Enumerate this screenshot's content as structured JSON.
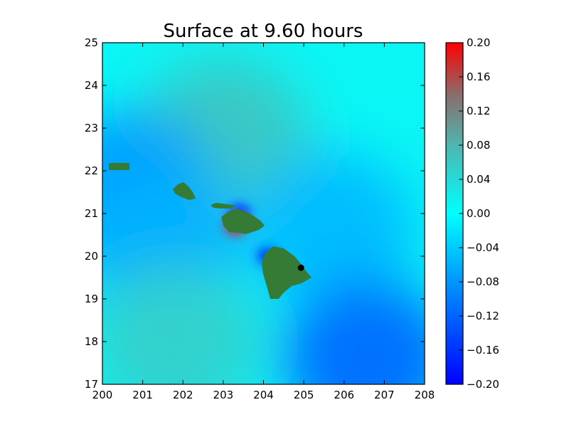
{
  "chart_data": {
    "type": "heatmap",
    "title": "Surface at 9.60 hours",
    "xlabel": "",
    "ylabel": "",
    "xlim": [
      200,
      208
    ],
    "ylim": [
      17,
      25
    ],
    "x_ticks": [
      "200",
      "201",
      "202",
      "203",
      "204",
      "205",
      "206",
      "207",
      "208"
    ],
    "y_ticks": [
      "17",
      "18",
      "19",
      "20",
      "21",
      "22",
      "23",
      "24",
      "25"
    ],
    "colorbar": {
      "range": [
        -0.2,
        0.2
      ],
      "ticks": [
        "0.20",
        "0.16",
        "0.12",
        "0.08",
        "0.04",
        "0.00",
        "−0.04",
        "−0.08",
        "−0.12",
        "−0.16",
        "−0.20"
      ],
      "colors": {
        "min": "#0000ff",
        "low": "#0096ff",
        "zero": "#00ffff",
        "mid": "#4fb5b0",
        "high_mid": "#8c6b6b",
        "max": "#ff0000"
      }
    },
    "land_color": "#357a35",
    "point_marker": {
      "x": 204.93,
      "y": 19.73,
      "color": "#000000"
    },
    "surface_features": [
      {
        "x": 203.0,
        "y": 22.8,
        "value": 0.06
      },
      {
        "x": 200.7,
        "y": 21.5,
        "value": -0.08
      },
      {
        "x": 201.3,
        "y": 20.5,
        "value": -0.06
      },
      {
        "x": 205.7,
        "y": 20.6,
        "value": -0.05
      },
      {
        "x": 206.6,
        "y": 17.6,
        "value": -0.11
      },
      {
        "x": 201.8,
        "y": 18.0,
        "value": 0.05
      },
      {
        "x": 203.3,
        "y": 20.7,
        "value": 0.2
      },
      {
        "x": 203.4,
        "y": 21.0,
        "value": -0.19
      },
      {
        "x": 204.1,
        "y": 20.0,
        "value": -0.17
      }
    ]
  }
}
